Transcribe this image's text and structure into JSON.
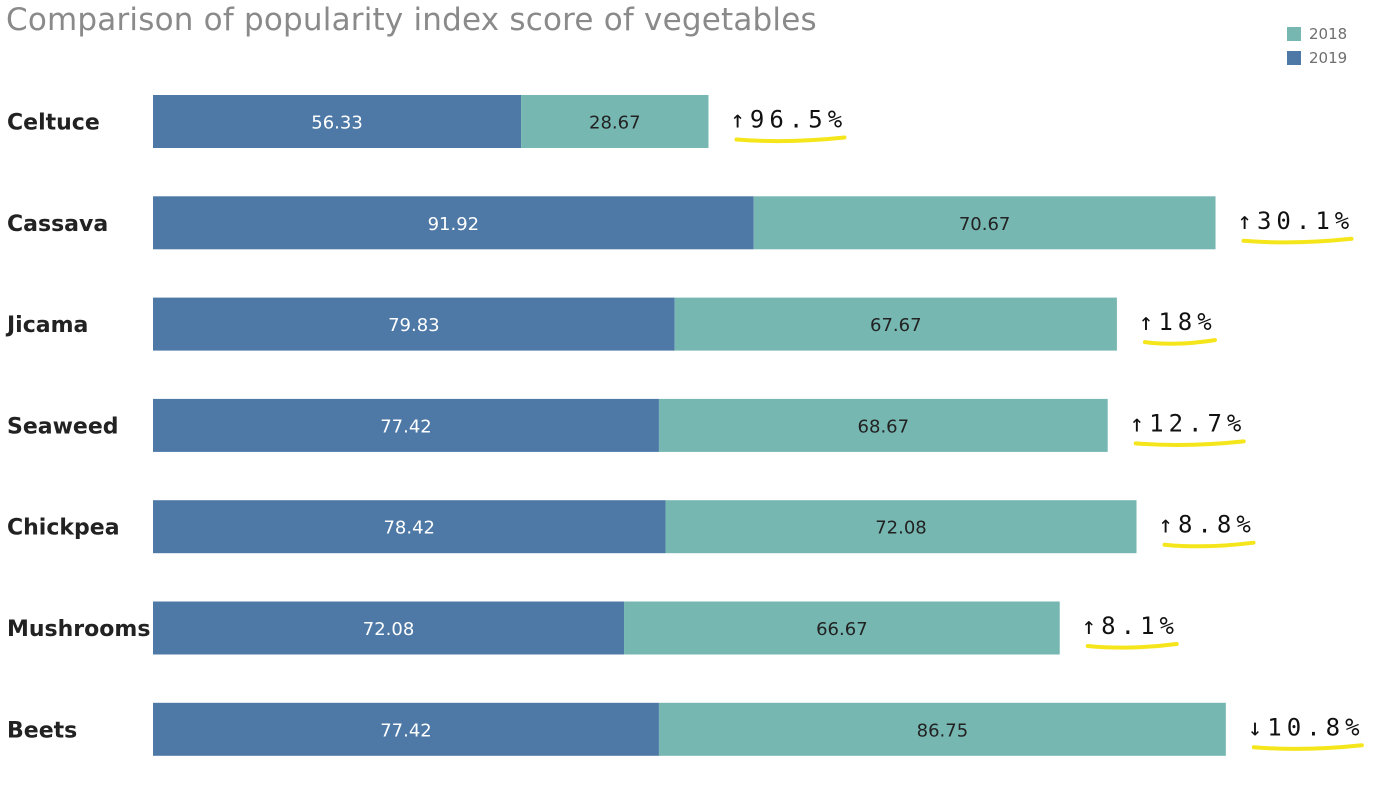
{
  "chart_data": {
    "type": "bar",
    "orientation": "horizontal",
    "stacked": true,
    "title": "Comparison of popularity index score of vegetables",
    "xlabel": "",
    "ylabel": "",
    "categories": [
      "Celtuce",
      "Cassava",
      "Jicama",
      "Seaweed",
      "Chickpea",
      "Mushrooms",
      "Beets"
    ],
    "series": [
      {
        "name": "2019",
        "color": "#4e79a7",
        "values": [
          56.33,
          91.92,
          79.83,
          77.42,
          78.42,
          72.08,
          77.42
        ]
      },
      {
        "name": "2018",
        "color": "#76b7b2",
        "values": [
          28.67,
          70.67,
          67.67,
          68.67,
          72.08,
          66.67,
          86.75
        ]
      }
    ],
    "changes": [
      "↑96.5%",
      "↑30.1%",
      "↑18%",
      "↑12.7%",
      "↑8.8%",
      "↑8.1%",
      "↓10.8%"
    ],
    "change_highlight_color": "#f5e51b",
    "legend_order": [
      "2018",
      "2019"
    ],
    "legend_placement": "top-right",
    "grid": false
  }
}
